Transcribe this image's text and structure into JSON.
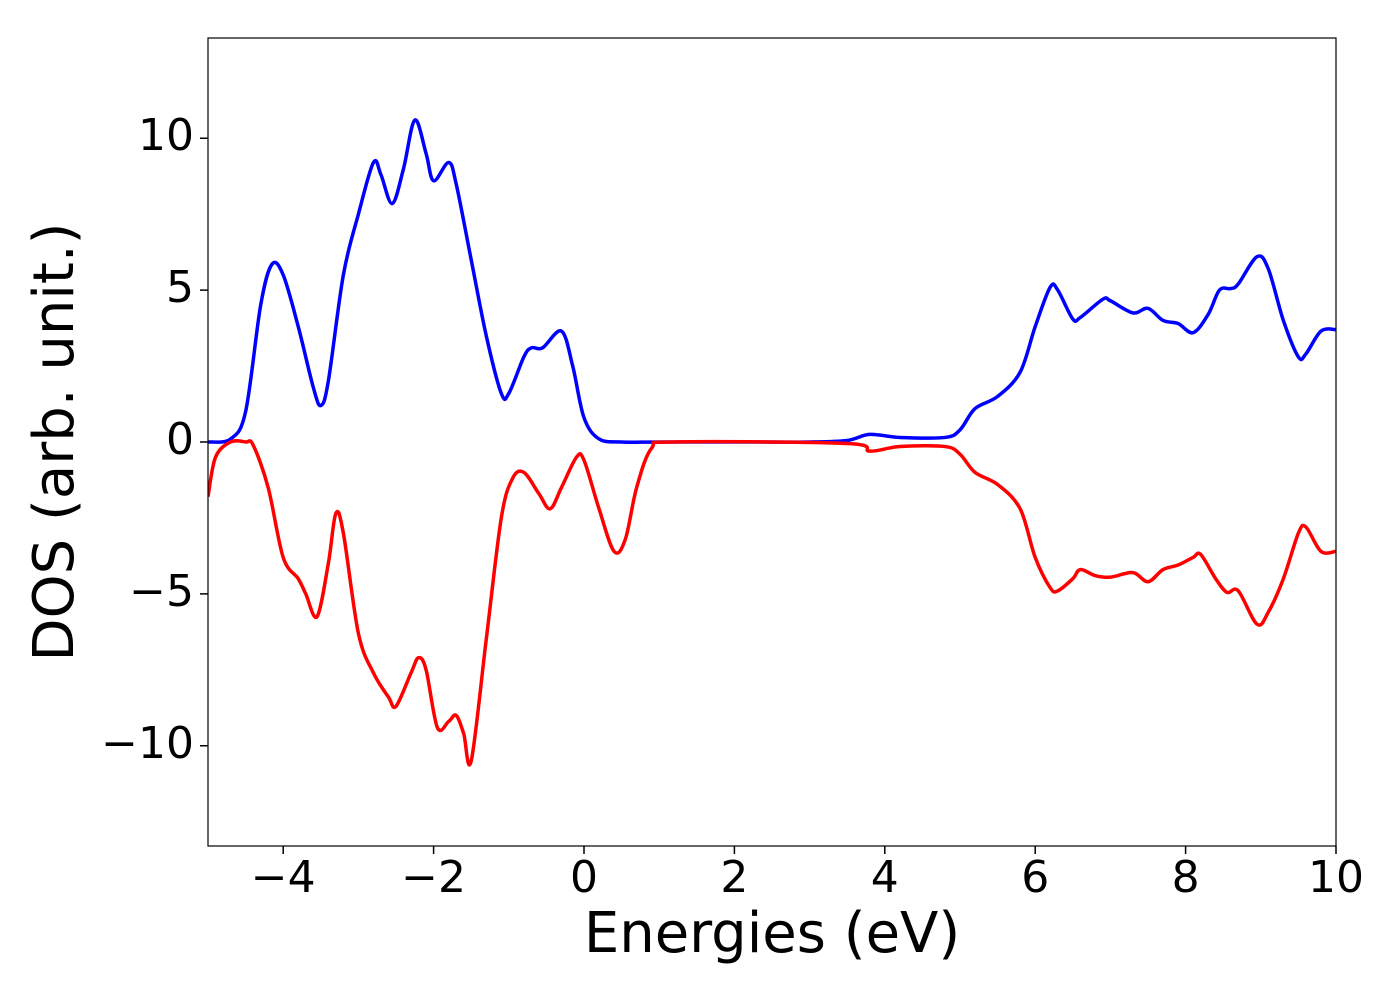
{
  "chart_data": {
    "type": "line",
    "x_label": "Energies (eV)",
    "y_label": "DOS (arb. unit.)",
    "xlim": [
      -5,
      10
    ],
    "ylim": [
      -13.3,
      13.3
    ],
    "xticks": [
      {
        "value": -4,
        "label": "−4"
      },
      {
        "value": -2,
        "label": "−2"
      },
      0,
      2,
      4,
      6,
      8,
      10
    ],
    "yticks": [
      {
        "value": -10,
        "label": "−10"
      },
      {
        "value": -5,
        "label": "−5"
      },
      0,
      5,
      10
    ],
    "grid": false,
    "series": [
      {
        "color": "#0000ff",
        "x": [
          -5,
          -4.7,
          -4.5,
          -4.3,
          -4.15,
          -4.0,
          -3.8,
          -3.6,
          -3.5,
          -3.4,
          -3.2,
          -3.0,
          -2.8,
          -2.7,
          -2.55,
          -2.4,
          -2.25,
          -2.1,
          -2.0,
          -1.8,
          -1.7,
          -1.5,
          -1.3,
          -1.1,
          -1.0,
          -0.8,
          -0.7,
          -0.55,
          -0.3,
          -0.15,
          0.0,
          0.2,
          0.5,
          1,
          2,
          3,
          3.5,
          3.8,
          4.2,
          4.8,
          5.0,
          5.2,
          5.5,
          5.8,
          6.0,
          6.2,
          6.3,
          6.5,
          6.6,
          6.9,
          7.0,
          7.3,
          7.5,
          7.7,
          7.9,
          8.1,
          8.3,
          8.45,
          8.6,
          8.7,
          8.95,
          9.1,
          9.3,
          9.5,
          9.6,
          9.8,
          10
        ],
        "values": [
          0,
          0.1,
          1.0,
          4.5,
          5.85,
          5.5,
          3.8,
          1.8,
          1.2,
          2.0,
          5.5,
          7.5,
          9.2,
          8.8,
          7.85,
          9.0,
          10.6,
          9.5,
          8.6,
          9.2,
          8.5,
          6.0,
          3.5,
          1.6,
          1.6,
          2.8,
          3.1,
          3.1,
          3.65,
          2.5,
          0.8,
          0.1,
          0,
          0,
          0,
          0,
          0.05,
          0.25,
          0.15,
          0.15,
          0.4,
          1.1,
          1.5,
          2.3,
          3.8,
          5.1,
          5.0,
          4.05,
          4.1,
          4.7,
          4.65,
          4.25,
          4.4,
          4.0,
          3.9,
          3.6,
          4.2,
          5.0,
          5.05,
          5.2,
          6.1,
          5.7,
          4.0,
          2.8,
          2.9,
          3.65,
          3.7
        ]
      },
      {
        "color": "#ff0000",
        "x": [
          -5,
          -4.9,
          -4.7,
          -4.5,
          -4.4,
          -4.2,
          -4.0,
          -3.8,
          -3.7,
          -3.55,
          -3.4,
          -3.3,
          -3.2,
          -3.0,
          -2.8,
          -2.6,
          -2.5,
          -2.3,
          -2.2,
          -2.1,
          -1.95,
          -1.8,
          -1.7,
          -1.6,
          -1.5,
          -1.3,
          -1.1,
          -0.95,
          -0.8,
          -0.6,
          -0.45,
          -0.3,
          -0.1,
          0.0,
          0.2,
          0.4,
          0.55,
          0.7,
          0.9,
          1.2,
          3.5,
          3.8,
          4.2,
          4.8,
          5.0,
          5.2,
          5.5,
          5.8,
          6.0,
          6.2,
          6.3,
          6.5,
          6.6,
          6.8,
          7.0,
          7.3,
          7.5,
          7.7,
          7.9,
          8.1,
          8.2,
          8.4,
          8.55,
          8.7,
          8.95,
          9.1,
          9.3,
          9.5,
          9.6,
          9.8,
          10
        ],
        "values": [
          -1.8,
          -0.5,
          0,
          0,
          -0.1,
          -1.5,
          -3.8,
          -4.5,
          -5.0,
          -5.75,
          -4.0,
          -2.35,
          -3.0,
          -6.3,
          -7.6,
          -8.4,
          -8.7,
          -7.6,
          -7.1,
          -7.5,
          -9.4,
          -9.2,
          -9.0,
          -9.6,
          -10.5,
          -6.5,
          -2.5,
          -1.2,
          -1.0,
          -1.7,
          -2.2,
          -1.5,
          -0.5,
          -0.6,
          -2.2,
          -3.6,
          -3.2,
          -1.5,
          -0.2,
          0,
          -0.05,
          -0.3,
          -0.15,
          -0.15,
          -0.4,
          -1.0,
          -1.4,
          -2.2,
          -3.8,
          -4.8,
          -4.9,
          -4.5,
          -4.2,
          -4.4,
          -4.45,
          -4.3,
          -4.6,
          -4.2,
          -4.05,
          -3.8,
          -3.7,
          -4.5,
          -4.95,
          -4.9,
          -6.0,
          -5.6,
          -4.5,
          -3.0,
          -2.8,
          -3.6,
          -3.6
        ]
      }
    ]
  }
}
